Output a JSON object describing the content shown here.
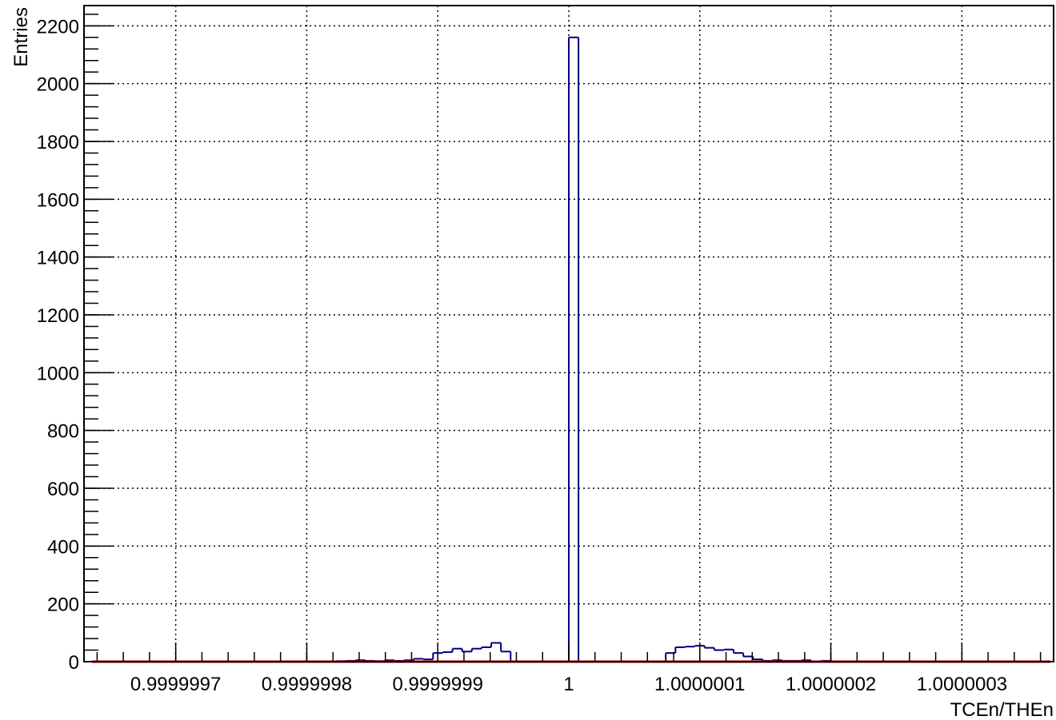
{
  "chart_data": {
    "type": "bar",
    "title": "",
    "xlabel": "TCEn/THEn",
    "ylabel": "Entries",
    "xlim": [
      0.99999963,
      1.00000037
    ],
    "ylim": [
      0,
      2270
    ],
    "grid": true,
    "x_ticks": [
      0.9999997,
      0.9999998,
      0.9999999,
      1,
      1.0000001,
      1.0000002,
      1.0000003
    ],
    "x_tick_labels": [
      "0.9999997",
      "0.9999998",
      "0.9999999",
      "1",
      "1.0000001",
      "1.0000002",
      "1.0000003"
    ],
    "y_ticks": [
      0,
      200,
      400,
      600,
      800,
      1000,
      1200,
      1400,
      1600,
      1800,
      2000,
      2200
    ],
    "y_tick_labels": [
      "0",
      "200",
      "400",
      "600",
      "800",
      "1000",
      "1200",
      "1400",
      "1600",
      "1800",
      "2000",
      "2200"
    ],
    "bin_width": 7.4e-09,
    "bin_values": [
      0,
      0,
      0,
      0,
      0,
      0,
      0,
      0,
      0,
      0,
      0,
      0,
      0,
      0,
      0,
      0,
      0,
      0,
      0,
      0,
      0,
      0,
      0,
      0,
      0,
      0,
      2,
      3,
      5,
      3,
      2,
      5,
      3,
      5,
      10,
      8,
      30,
      33,
      45,
      35,
      45,
      50,
      65,
      35,
      0,
      0,
      0,
      0,
      0,
      0,
      2160,
      0,
      0,
      0,
      0,
      0,
      0,
      0,
      0,
      0,
      30,
      50,
      52,
      55,
      48,
      40,
      42,
      30,
      18,
      8,
      3,
      5,
      3,
      3,
      5,
      0,
      3,
      0,
      0,
      0,
      0,
      0,
      0,
      0,
      0,
      0,
      0,
      0,
      0,
      0,
      0,
      0,
      0,
      0,
      0,
      0,
      0,
      0,
      0,
      0
    ],
    "series": [
      {
        "name": "",
        "color": "#000080"
      }
    ],
    "fit_color": "#cc0000"
  }
}
